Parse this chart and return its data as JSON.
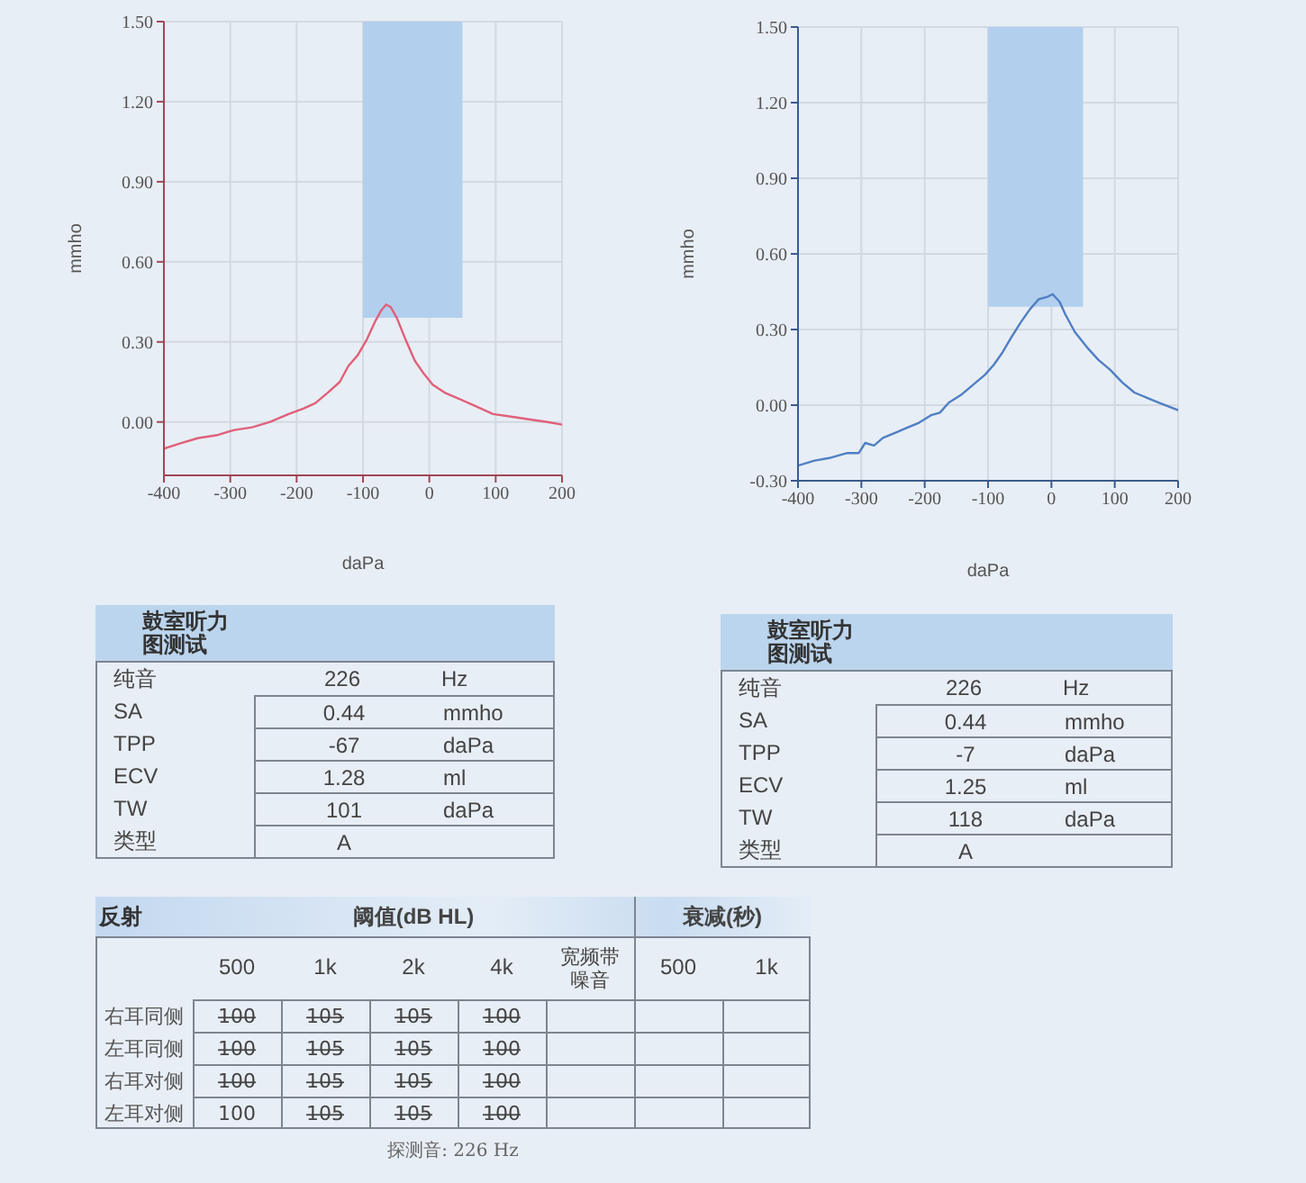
{
  "chart_data": [
    {
      "type": "line",
      "xlabel": "daPa",
      "ylabel": "mmho",
      "xlim": [
        -400,
        200
      ],
      "xticks": [
        -400,
        -300,
        -200,
        -100,
        0,
        100,
        200
      ],
      "ylim": [
        -0.2,
        1.5
      ],
      "yticks": [
        {
          "value": 0,
          "label": "0.00"
        },
        {
          "value": 0.3,
          "label": "0.30"
        },
        {
          "value": 0.6,
          "label": "0.60"
        },
        {
          "value": 0.9,
          "label": "0.90"
        },
        {
          "value": 1.2,
          "label": "1.20"
        },
        {
          "value": 1.5,
          "label": "1.50"
        }
      ],
      "grid": true,
      "series": [
        {
          "type": "area",
          "color": "#b3cfee",
          "x": [
            -100,
            50
          ],
          "values": [
            null,
            null
          ],
          "lower": [
            0.39,
            0.39
          ],
          "upper": [
            1.5,
            1.5
          ]
        },
        {
          "color": "#e0607a",
          "x": [
            -400,
            -375,
            -348,
            -321,
            -294,
            -267,
            -240,
            -212,
            -190,
            -172,
            -153,
            -135,
            -122,
            -108,
            -94,
            -81,
            -72,
            -65,
            -58,
            -49,
            -36,
            -22,
            -8,
            5,
            23,
            42,
            69,
            96,
            123,
            150,
            178,
            200
          ],
          "values": [
            -0.1,
            -0.08,
            -0.06,
            -0.05,
            -0.03,
            -0.02,
            0.0,
            0.03,
            0.05,
            0.07,
            0.11,
            0.15,
            0.21,
            0.25,
            0.31,
            0.38,
            0.42,
            0.44,
            0.43,
            0.39,
            0.31,
            0.23,
            0.18,
            0.14,
            0.11,
            0.09,
            0.06,
            0.03,
            0.02,
            0.01,
            0.0,
            -0.01
          ]
        }
      ]
    },
    {
      "type": "line",
      "xlabel": "daPa",
      "ylabel": "mmho",
      "xlim": [
        -400,
        200
      ],
      "xticks": [
        -400,
        -300,
        -200,
        -100,
        0,
        100,
        200
      ],
      "ylim": [
        -0.3,
        1.5
      ],
      "yticks": [
        {
          "value": -0.3,
          "label": "-0.30"
        },
        {
          "value": 0,
          "label": "0.00"
        },
        {
          "value": 0.3,
          "label": "0.30"
        },
        {
          "value": 0.6,
          "label": "0.60"
        },
        {
          "value": 0.9,
          "label": "0.90"
        },
        {
          "value": 1.2,
          "label": "1.20"
        },
        {
          "value": 1.5,
          "label": "1.50"
        }
      ],
      "grid": true,
      "series": [
        {
          "type": "area",
          "color": "#b3cfee",
          "x": [
            -100,
            50
          ],
          "values": [
            null,
            null
          ],
          "lower": [
            0.39,
            0.39
          ],
          "upper": [
            1.5,
            1.5
          ]
        },
        {
          "color": "#4f7fc4",
          "x": [
            -400,
            -374,
            -351,
            -322,
            -304,
            -294,
            -280,
            -266,
            -247,
            -228,
            -209,
            -190,
            -176,
            -162,
            -143,
            -124,
            -105,
            -91,
            -77,
            -63,
            -48,
            -34,
            -20,
            -6,
            2,
            13,
            22,
            37,
            56,
            74,
            93,
            112,
            131,
            150,
            169,
            200
          ],
          "values": [
            -0.24,
            -0.22,
            -0.21,
            -0.19,
            -0.19,
            -0.15,
            -0.16,
            -0.13,
            -0.11,
            -0.09,
            -0.07,
            -0.04,
            -0.03,
            0.01,
            0.04,
            0.08,
            0.12,
            0.16,
            0.21,
            0.27,
            0.33,
            0.38,
            0.42,
            0.43,
            0.44,
            0.41,
            0.36,
            0.29,
            0.23,
            0.18,
            0.14,
            0.09,
            0.05,
            0.03,
            0.01,
            -0.02
          ]
        }
      ]
    },
    {
      "type": "other",
      "title": "鼓室听力图测试",
      "annotations": [
        "纯音",
        "226",
        "Hz",
        "SA",
        "0.44",
        "mmho",
        "TPP",
        "-67",
        "daPa",
        "ECV",
        "1.28",
        "ml",
        "TW",
        "101",
        "daPa",
        "类型",
        "A"
      ]
    },
    {
      "type": "other",
      "title": "鼓室听力图测试",
      "annotations": [
        "纯音",
        "226",
        "Hz",
        "SA",
        "0.44",
        "mmho",
        "TPP",
        "-7",
        "daPa",
        "ECV",
        "1.25",
        "ml",
        "TW",
        "118",
        "daPa",
        "类型",
        "A"
      ]
    },
    {
      "type": "other",
      "title": "反射",
      "annotations": [
        "阈值(dB HL)",
        "衰减(秒)",
        "500",
        "1k",
        "2k",
        "4k",
        "宽频带噪音",
        "500",
        "1k",
        "右耳同侧",
        "1̶0̶0̶",
        "1̶0̶5̶",
        "1̶0̶5̶",
        "1̶0̶0̶",
        "左耳同侧",
        "1̶0̶0̶",
        "1̶0̶5̶",
        "1̶0̶5̶",
        "1̶0̶0̶",
        "右耳对侧",
        "1̶0̶0̶",
        "1̶0̶5̶",
        "1̶0̶5̶",
        "1̶0̶0̶",
        "左耳对侧",
        "100",
        "1̶0̶5̶",
        "1̶0̶5̶",
        "1̶0̶0̶",
        "探测音: 226 Hz"
      ]
    }
  ]
}
